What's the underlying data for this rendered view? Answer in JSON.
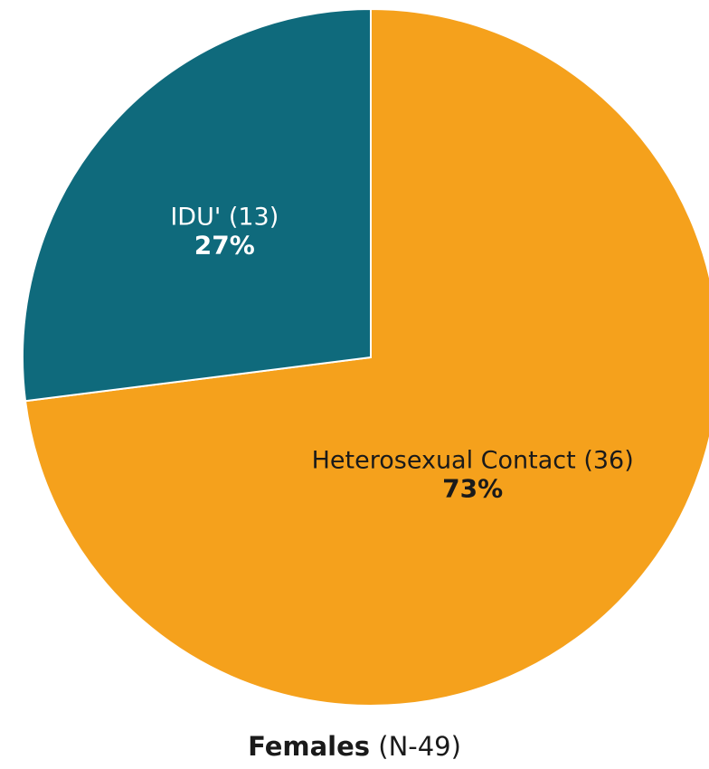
{
  "chart_data": {
    "type": "pie",
    "title": "",
    "slices": [
      {
        "label": "Heterosexual Contact (36)",
        "count": 36,
        "percent_label": "73%",
        "value": 73,
        "color": "#F5A11C",
        "label_color": "#1a1a1a"
      },
      {
        "label": "IDU' (13)",
        "count": 13,
        "percent_label": "27%",
        "value": 27,
        "color": "#0F6A7C",
        "label_color": "#ffffff"
      }
    ]
  },
  "caption": {
    "main": "Females",
    "sub": "(N-49)"
  }
}
